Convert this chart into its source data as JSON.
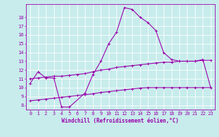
{
  "background_color": "#c8ecec",
  "line_color": "#9900aa",
  "grid_color": "#ffffff",
  "xlabel": "Windchill (Refroidissement éolien,°C)",
  "xlim": [
    -0.5,
    23.5
  ],
  "ylim": [
    7.5,
    19.5
  ],
  "yticks": [
    8,
    9,
    10,
    11,
    12,
    13,
    14,
    15,
    16,
    17,
    18
  ],
  "xticks": [
    0,
    1,
    2,
    3,
    4,
    5,
    6,
    7,
    8,
    9,
    10,
    11,
    12,
    13,
    14,
    15,
    16,
    17,
    18,
    19,
    20,
    21,
    22,
    23
  ],
  "line1_x": [
    0,
    1,
    2,
    3,
    4,
    5,
    7,
    8,
    9,
    10,
    11,
    12,
    13,
    14,
    15,
    16,
    17,
    18,
    19,
    20,
    21,
    22,
    23
  ],
  "line1_y": [
    10.5,
    11.8,
    11.1,
    11.1,
    7.8,
    7.8,
    9.4,
    11.5,
    13.0,
    15.0,
    16.3,
    19.1,
    18.9,
    18.0,
    17.4,
    16.5,
    14.0,
    13.2,
    13.0,
    13.0,
    13.0,
    13.2,
    10.0
  ],
  "line2_x": [
    0,
    1,
    2,
    3,
    4,
    5,
    6,
    7,
    8,
    9,
    10,
    11,
    12,
    13,
    14,
    15,
    16,
    17,
    18,
    19,
    20,
    21,
    22,
    23
  ],
  "line2_y": [
    11.0,
    11.1,
    11.2,
    11.3,
    11.3,
    11.4,
    11.5,
    11.6,
    11.8,
    12.0,
    12.1,
    12.3,
    12.4,
    12.5,
    12.6,
    12.7,
    12.8,
    12.9,
    12.9,
    13.0,
    13.0,
    13.0,
    13.1,
    13.1
  ],
  "line3_x": [
    0,
    1,
    2,
    3,
    4,
    5,
    6,
    7,
    8,
    9,
    10,
    11,
    12,
    13,
    14,
    15,
    16,
    17,
    18,
    19,
    20,
    21,
    22,
    23
  ],
  "line3_y": [
    8.5,
    8.6,
    8.7,
    8.8,
    8.9,
    9.0,
    9.1,
    9.2,
    9.3,
    9.45,
    9.55,
    9.65,
    9.75,
    9.85,
    9.95,
    10.0,
    10.0,
    10.0,
    10.0,
    10.0,
    10.0,
    10.0,
    10.0,
    10.0
  ],
  "marker_size": 2.5,
  "line_width": 0.8,
  "font_size_label": 5.5,
  "font_size_tick": 5.0
}
